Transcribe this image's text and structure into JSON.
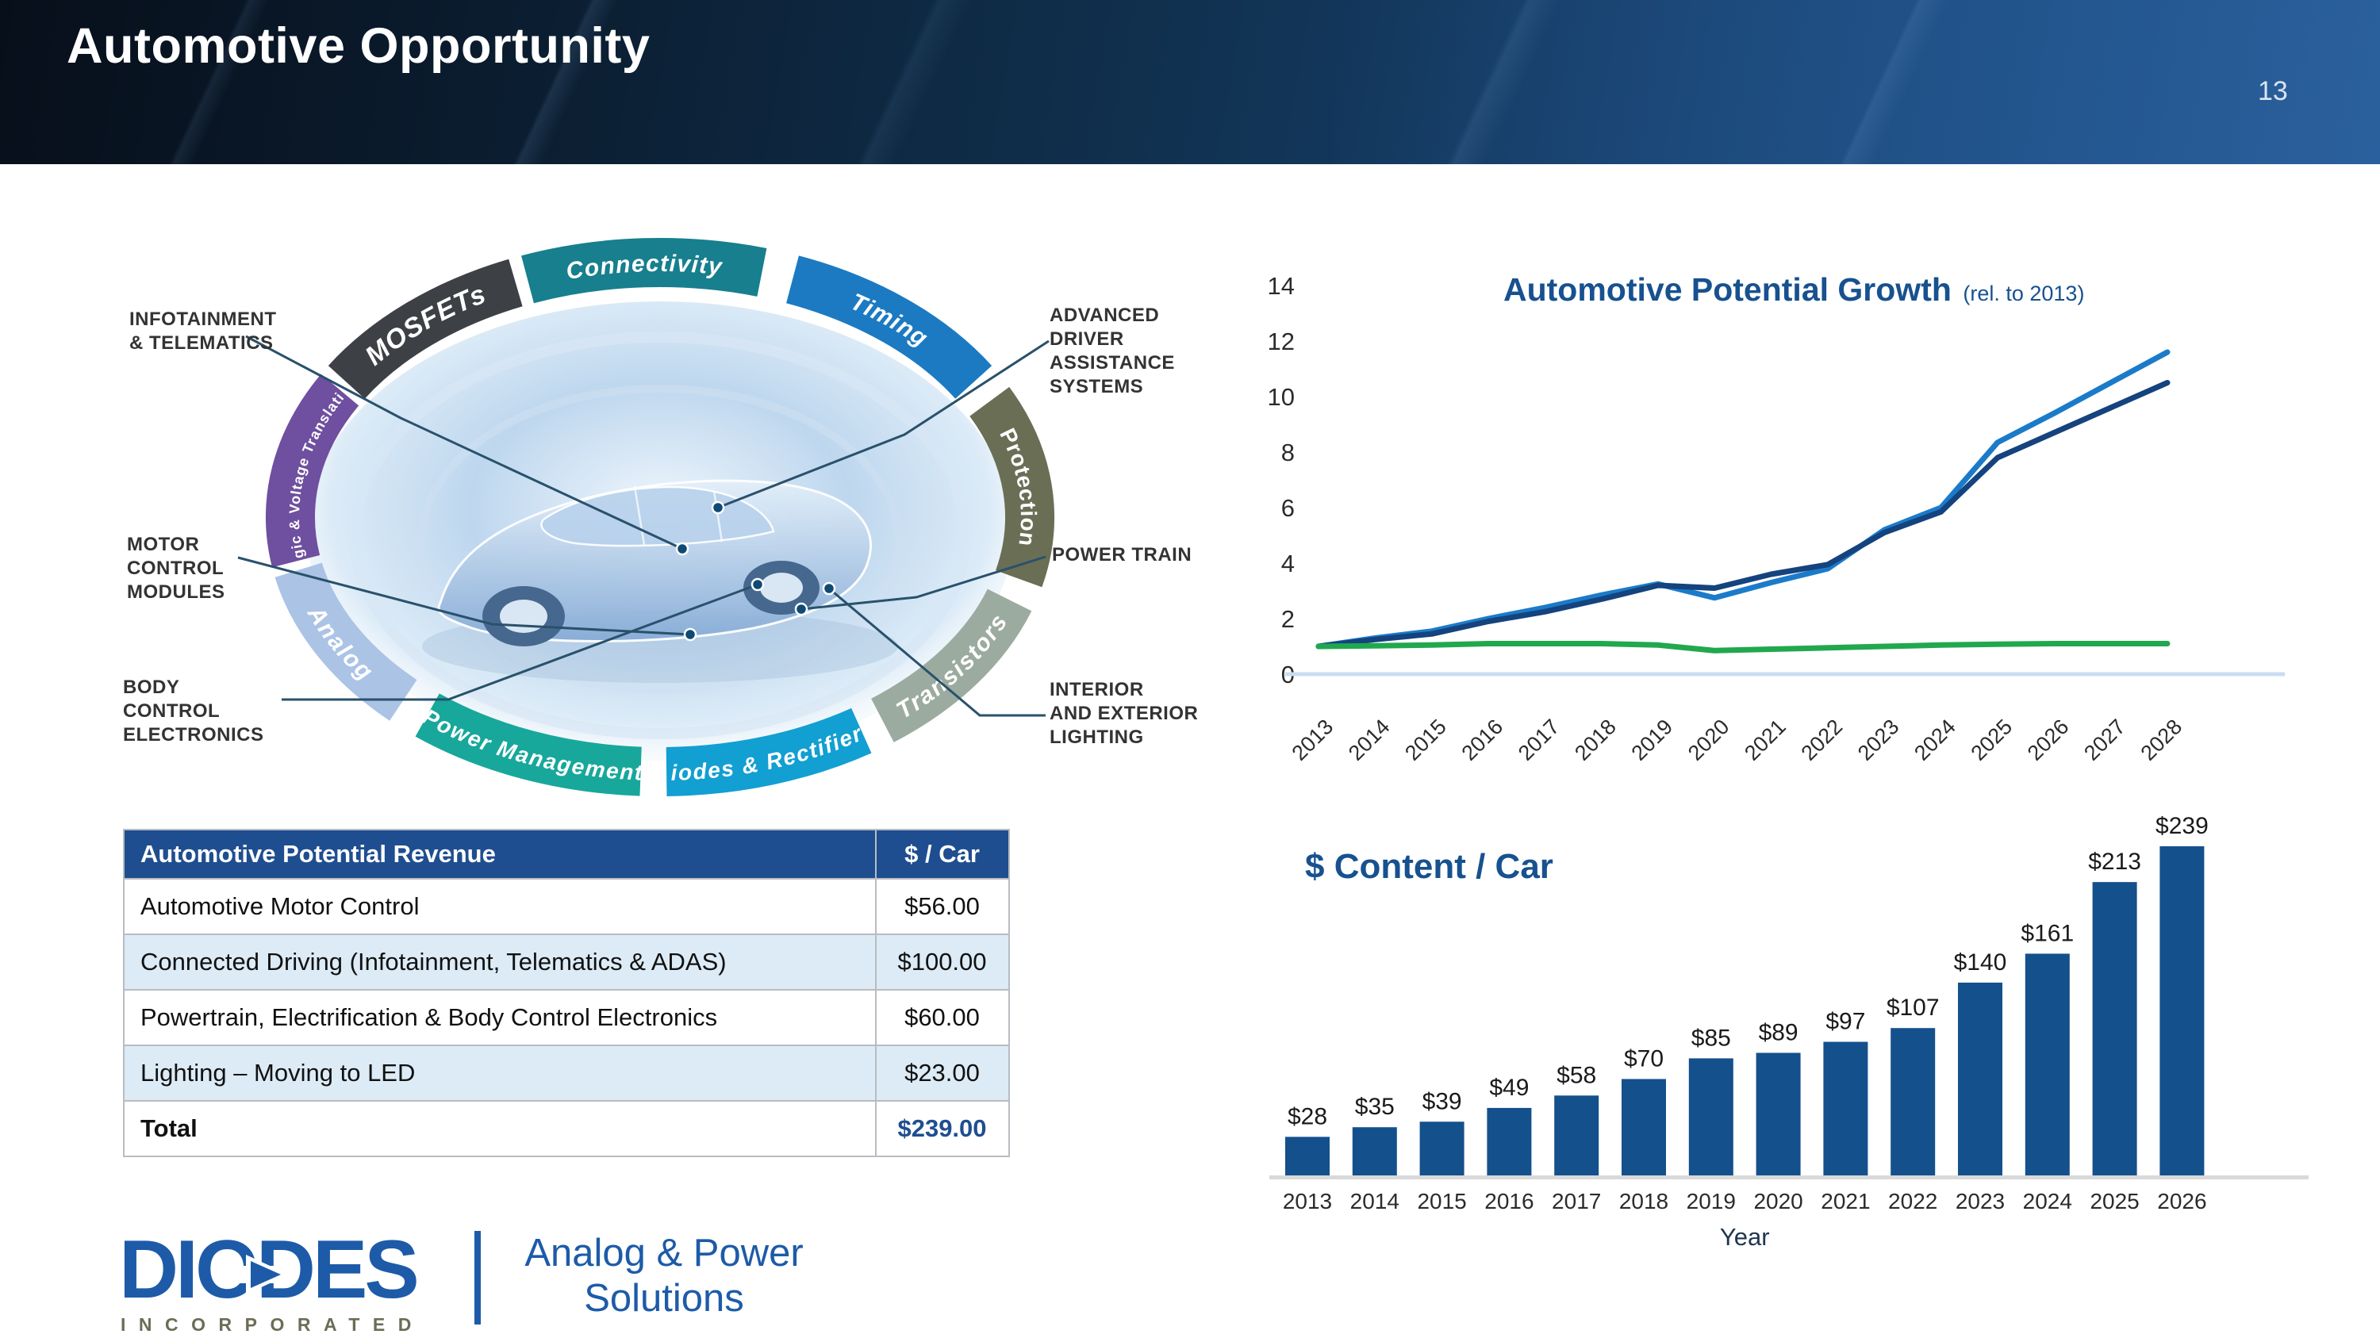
{
  "header": {
    "title": "Automotive Opportunity",
    "page_number": "13"
  },
  "colors": {
    "accent_blue": "#17518f",
    "table_header_bg": "#1f4e90",
    "table_shaded_row": "#dcebf6",
    "bar_fill": "#14508c",
    "line_light_blue": "#1b7bc9",
    "line_dark_blue": "#14437e",
    "line_green": "#21a84e",
    "axis_baseline_blue": "#c9ddf0",
    "axis_baseline_gray": "#d9d9d9",
    "logo_blue": "#1d5ba8",
    "logo_olive": "#6c6c57"
  },
  "diagram": {
    "segments": [
      {
        "label": "MOSFETs",
        "color": "#3d4045",
        "a0": 302,
        "a1": 337,
        "flip": false,
        "size": 34,
        "italic": true
      },
      {
        "label": "Connectivity",
        "color": "#177f8e",
        "a0": 339,
        "a1": 376,
        "flip": false,
        "size": 30,
        "italic": true
      },
      {
        "label": "Timing",
        "color": "#1b7ac2",
        "a0": 21,
        "a1": 58,
        "flip": false,
        "size": 30,
        "italic": true
      },
      {
        "label": "Protection",
        "color": "#6a6e55",
        "a0": 63,
        "a1": 104,
        "flip": false,
        "size": 28,
        "italic": false
      },
      {
        "label": "Transistors",
        "color": "#9cab9f",
        "a0": 109,
        "a1": 143,
        "flip": true,
        "size": 30,
        "italic": true
      },
      {
        "label": "Diodes & Rectifiers",
        "color": "#129fd2",
        "a0": 147,
        "a1": 179,
        "flip": true,
        "size": 28,
        "italic": true
      },
      {
        "label": "Power Management",
        "color": "#18a79b",
        "a0": 183,
        "a1": 219,
        "flip": true,
        "size": 28,
        "italic": true
      },
      {
        "label": "Analog",
        "color": "#abc3e5",
        "a0": 224,
        "a1": 258,
        "flip": true,
        "size": 30,
        "italic": true
      },
      {
        "label": "Logic & Voltage Translation",
        "color": "#6f4f9f",
        "a0": 260,
        "a1": 300,
        "flip": false,
        "size": 18,
        "italic": false
      }
    ],
    "callouts": [
      {
        "id": "infotainment",
        "text": "INFOTAINMENT\n& TELEMATICS"
      },
      {
        "id": "motor",
        "text": "MOTOR\nCONTROL\nMODULES"
      },
      {
        "id": "body",
        "text": "BODY\nCONTROL\nELECTRONICS"
      },
      {
        "id": "adas",
        "text": "ADVANCED\nDRIVER\nASSISTANCE\nSYSTEMS"
      },
      {
        "id": "powertrain",
        "text": "POWER TRAIN"
      },
      {
        "id": "lighting",
        "text": "INTERIOR\nAND EXTERIOR\nLIGHTING"
      }
    ]
  },
  "table": {
    "header": [
      "Automotive Potential Revenue",
      "$ / Car"
    ],
    "rows": [
      {
        "label": "Automotive Motor Control",
        "value": "$56.00"
      },
      {
        "label": "Connected Driving (Infotainment, Telematics & ADAS)",
        "value": "$100.00"
      },
      {
        "label": "Powertrain, Electrification & Body Control Electronics",
        "value": "$60.00"
      },
      {
        "label": "Lighting – Moving to LED",
        "value": "$23.00"
      }
    ],
    "total": {
      "label": "Total",
      "value": "$239.00"
    }
  },
  "chart_data": [
    {
      "type": "line",
      "title": "Automotive Potential Growth",
      "title_suffix": "(rel. to 2013)",
      "x": [
        "2013",
        "2014",
        "2015",
        "2016",
        "2017",
        "2018",
        "2019",
        "2020",
        "2021",
        "2022",
        "2023",
        "2024",
        "2025",
        "2026",
        "2027",
        "2028"
      ],
      "series": [
        {
          "name": "potential-growth-high",
          "color": "#1b7bc9",
          "values": [
            1.0,
            1.3,
            1.55,
            2.0,
            2.4,
            2.85,
            3.25,
            2.75,
            3.3,
            3.8,
            5.2,
            6.0,
            8.35,
            9.4,
            10.5,
            11.6
          ]
        },
        {
          "name": "potential-growth-base",
          "color": "#14437e",
          "values": [
            1.0,
            1.25,
            1.45,
            1.9,
            2.25,
            2.7,
            3.2,
            3.1,
            3.6,
            3.95,
            5.1,
            5.85,
            7.8,
            8.7,
            9.6,
            10.5
          ]
        },
        {
          "name": "reference-flat",
          "color": "#21a84e",
          "values": [
            1.0,
            1.02,
            1.05,
            1.1,
            1.1,
            1.1,
            1.05,
            0.85,
            0.9,
            0.95,
            1.0,
            1.05,
            1.08,
            1.1,
            1.1,
            1.1
          ]
        }
      ],
      "ylim": [
        0,
        14
      ],
      "yticks": [
        0,
        2,
        4,
        6,
        8,
        10,
        12,
        14
      ],
      "grid": false,
      "legend": "none"
    },
    {
      "type": "bar",
      "title": "$ Content / Car",
      "categories": [
        "2013",
        "2014",
        "2015",
        "2016",
        "2017",
        "2018",
        "2019",
        "2020",
        "2021",
        "2022",
        "2023",
        "2024",
        "2025",
        "2026"
      ],
      "values": [
        28,
        35,
        39,
        49,
        58,
        70,
        85,
        89,
        97,
        107,
        140,
        161,
        213,
        239
      ],
      "labels": [
        "$28",
        "$35",
        "$39",
        "$49",
        "$58",
        "$70",
        "$85",
        "$89",
        "$97",
        "$107",
        "$140",
        "$161",
        "$213",
        "$239"
      ],
      "xlabel": "Year",
      "ylabel": "",
      "ylim": [
        0,
        250
      ],
      "grid": false
    }
  ],
  "footer": {
    "brand": "DIODES",
    "brand_sub": "INCORPORATED",
    "tagline_line1": "Analog & Power",
    "tagline_line2": "Solutions"
  }
}
